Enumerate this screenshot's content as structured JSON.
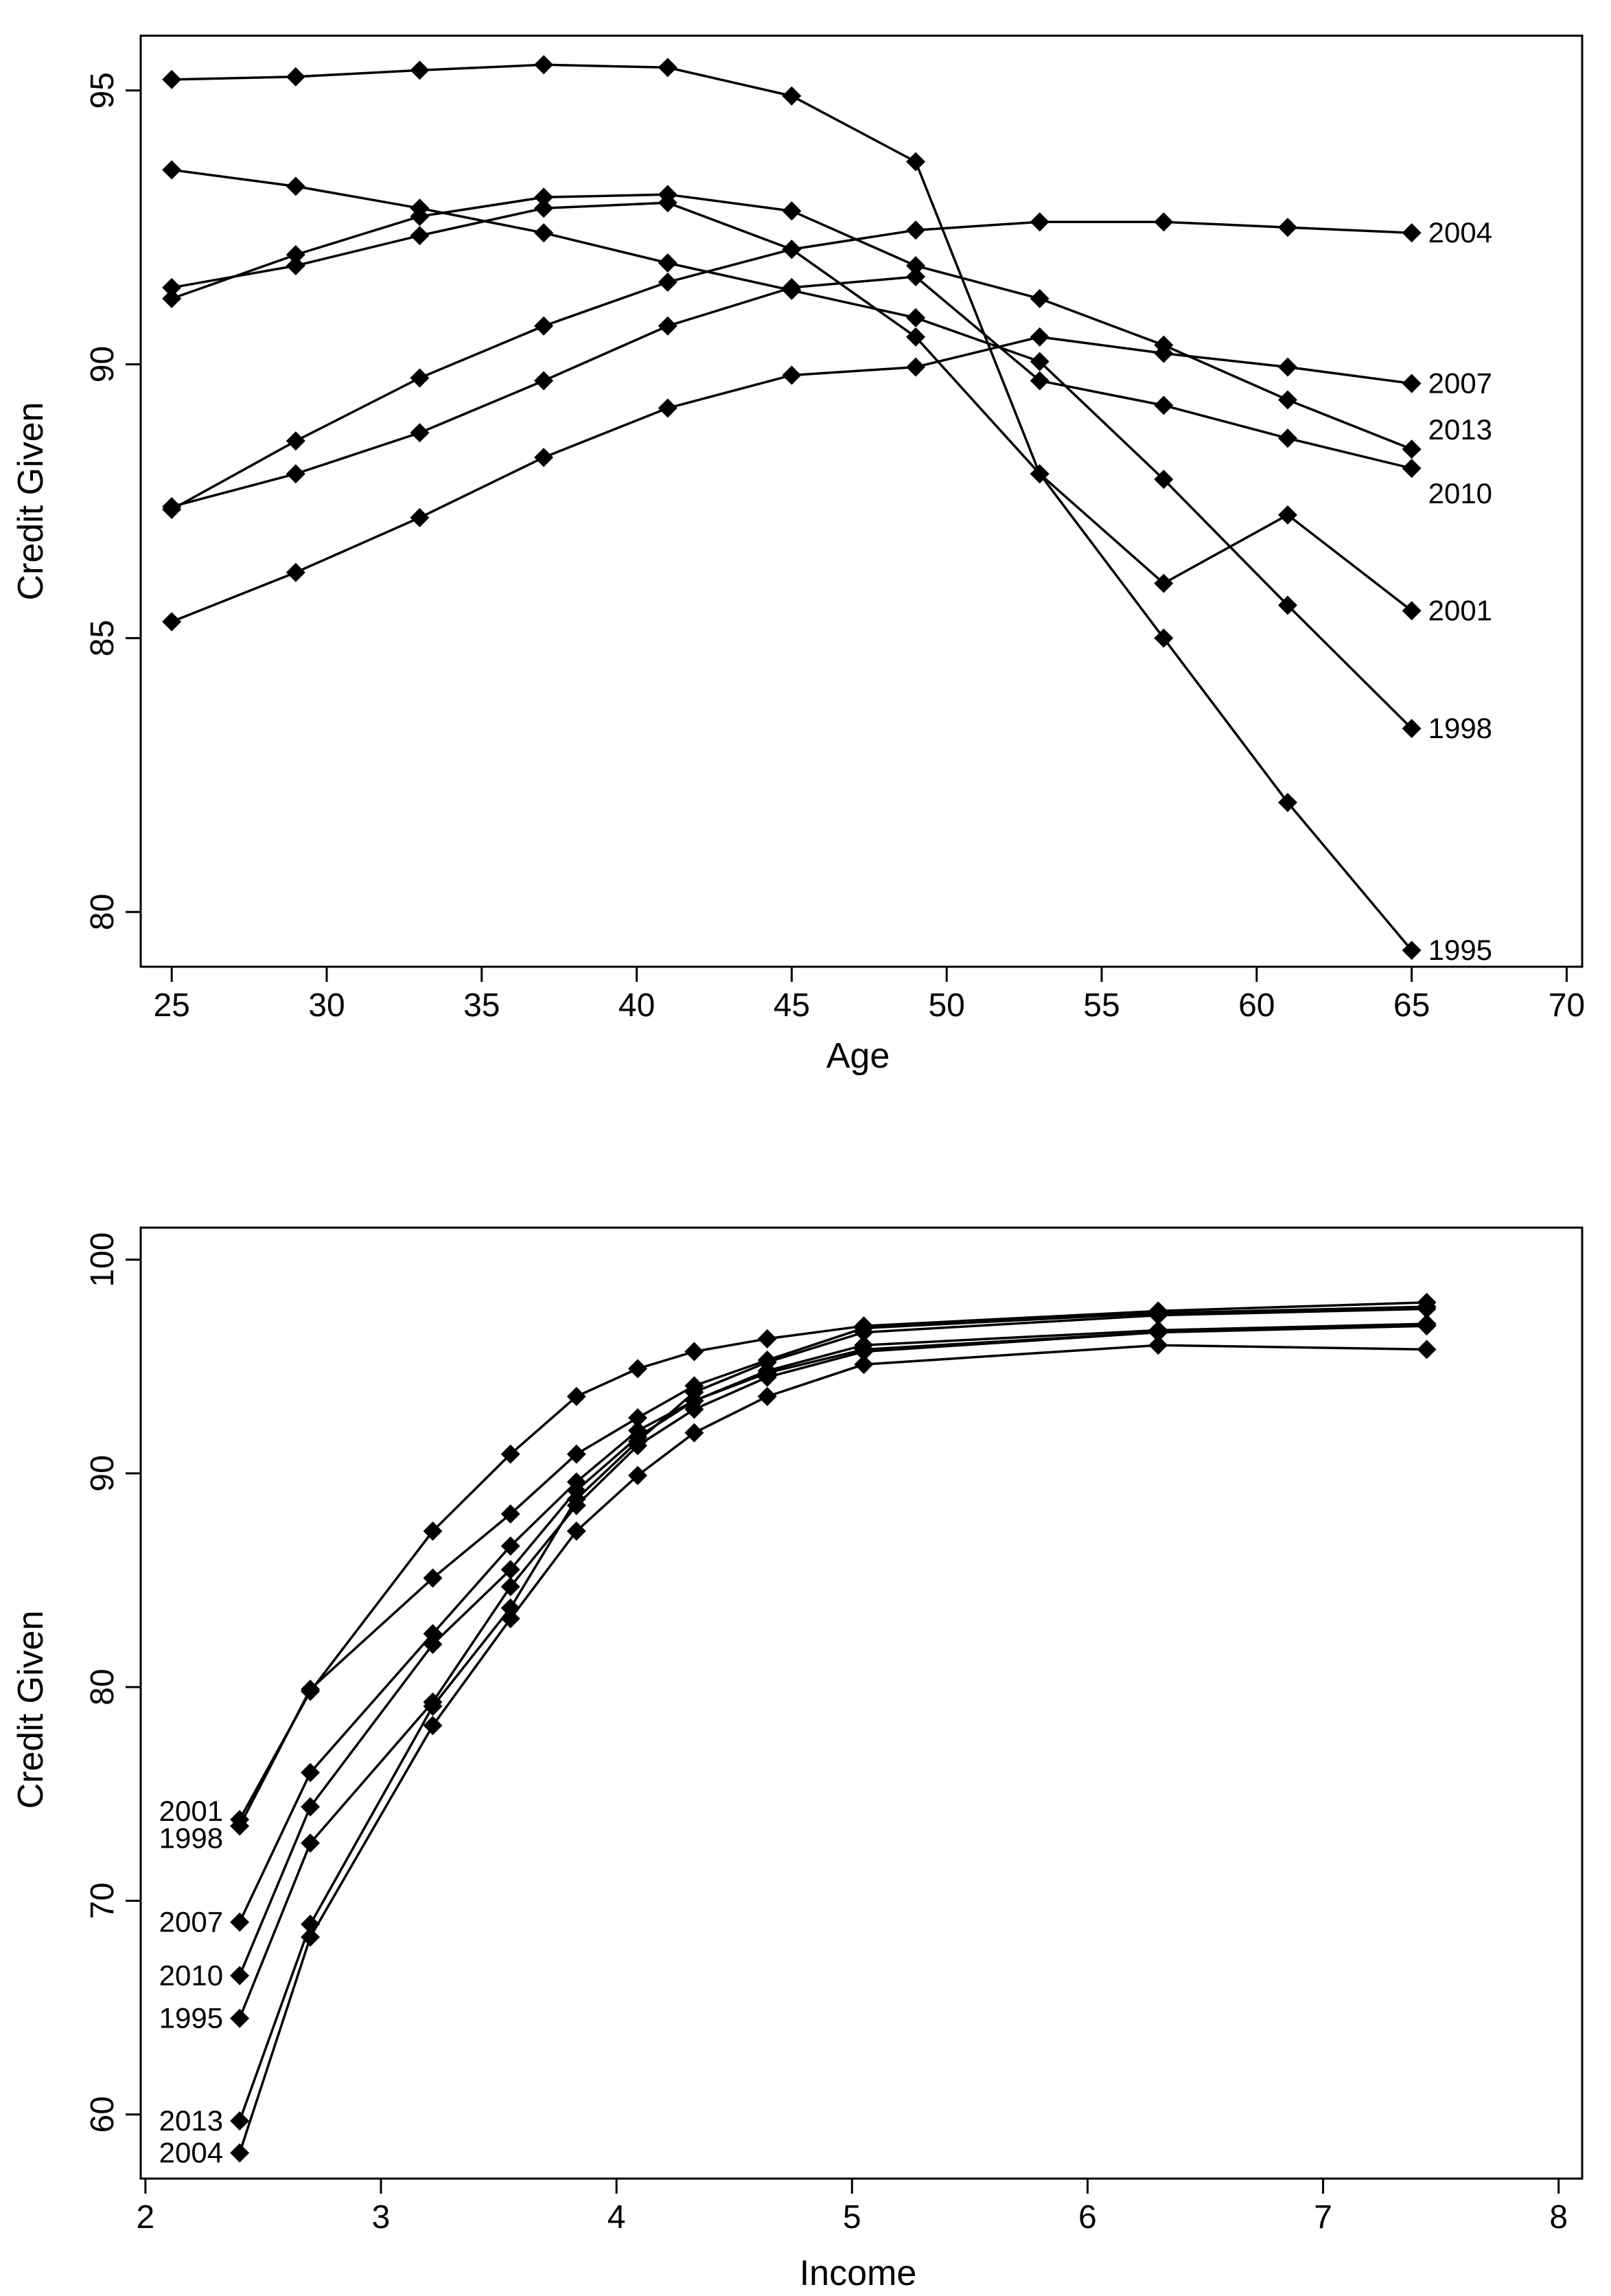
{
  "chart_data": [
    {
      "type": "line",
      "xlabel": "Age",
      "ylabel": "Credit Given",
      "xlim": [
        24,
        70.5
      ],
      "ylim": [
        79,
        96
      ],
      "xticks": [
        "25",
        "30",
        "35",
        "40",
        "45",
        "50",
        "55",
        "60",
        "65",
        "70"
      ],
      "yticks": [
        "80",
        "85",
        "90",
        "95"
      ],
      "x": [
        25,
        29,
        33,
        37,
        41,
        45,
        49,
        53,
        57,
        61,
        65
      ],
      "series": [
        {
          "name": "1995",
          "values": [
            95.2,
            95.25,
            95.37,
            95.47,
            95.42,
            94.9,
            93.7,
            88.0,
            85.0,
            82.0,
            79.3
          ]
        },
        {
          "name": "1998",
          "values": [
            93.55,
            93.25,
            92.85,
            92.4,
            91.85,
            91.35,
            90.85,
            90.05,
            87.9,
            85.6,
            83.35
          ]
        },
        {
          "name": "2001",
          "values": [
            91.4,
            91.8,
            92.35,
            92.85,
            92.95,
            92.1,
            90.5,
            88.0,
            86.0,
            87.25,
            85.5
          ]
        },
        {
          "name": "2004",
          "values": [
            87.35,
            88.6,
            89.75,
            90.7,
            91.5,
            92.1,
            92.45,
            92.6,
            92.6,
            92.5,
            92.4
          ]
        },
        {
          "name": "2007",
          "values": [
            85.3,
            86.2,
            87.2,
            88.3,
            89.2,
            89.8,
            89.95,
            90.5,
            90.2,
            89.95,
            89.65
          ]
        },
        {
          "name": "2010",
          "values": [
            87.4,
            88.0,
            88.75,
            89.7,
            90.7,
            91.4,
            91.6,
            89.7,
            89.25,
            88.65,
            88.1
          ]
        },
        {
          "name": "2013",
          "values": [
            91.2,
            92.0,
            92.7,
            93.05,
            93.1,
            92.8,
            91.8,
            91.2,
            90.35,
            89.35,
            88.45
          ]
        }
      ]
    },
    {
      "type": "line",
      "xlabel": "Income",
      "ylabel": "Credit Given",
      "xlim": [
        1.98,
        8.1
      ],
      "ylim": [
        57,
        101.5
      ],
      "xticks": [
        "2",
        "3",
        "4",
        "5",
        "6",
        "7",
        "8"
      ],
      "yticks": [
        "60",
        "70",
        "80",
        "90",
        "100"
      ],
      "x": [
        2.4,
        2.7,
        3.22,
        3.55,
        3.83,
        4.09,
        4.33,
        4.64,
        5.05,
        6.3,
        7.44
      ],
      "series": [
        {
          "name": "2001",
          "values": [
            73.8,
            79.8,
            87.3,
            90.9,
            93.6,
            94.9,
            95.7,
            96.3,
            96.9,
            97.6,
            98.0
          ]
        },
        {
          "name": "1998",
          "values": [
            73.5,
            79.9,
            85.1,
            88.1,
            90.9,
            92.6,
            94.1,
            95.3,
            96.8,
            97.5,
            97.8
          ]
        },
        {
          "name": "2007",
          "values": [
            69.0,
            76.0,
            82.5,
            86.6,
            89.6,
            92.0,
            93.4,
            94.8,
            96.0,
            96.7,
            97.0
          ]
        },
        {
          "name": "2010",
          "values": [
            66.5,
            74.4,
            82.0,
            85.5,
            89.2,
            91.7,
            93.4,
            94.7,
            95.8,
            96.6,
            96.9
          ]
        },
        {
          "name": "1995",
          "values": [
            64.5,
            72.7,
            79.3,
            84.7,
            88.5,
            91.3,
            93.0,
            94.5,
            95.7,
            96.6,
            97.0
          ]
        },
        {
          "name": "2013",
          "values": [
            59.7,
            68.9,
            79.1,
            83.7,
            88.8,
            91.5,
            93.8,
            95.2,
            96.6,
            97.4,
            97.7
          ]
        },
        {
          "name": "2004",
          "values": [
            58.2,
            68.3,
            78.2,
            83.2,
            87.3,
            89.9,
            91.9,
            93.6,
            95.1,
            96.0,
            95.8
          ]
        }
      ]
    }
  ]
}
